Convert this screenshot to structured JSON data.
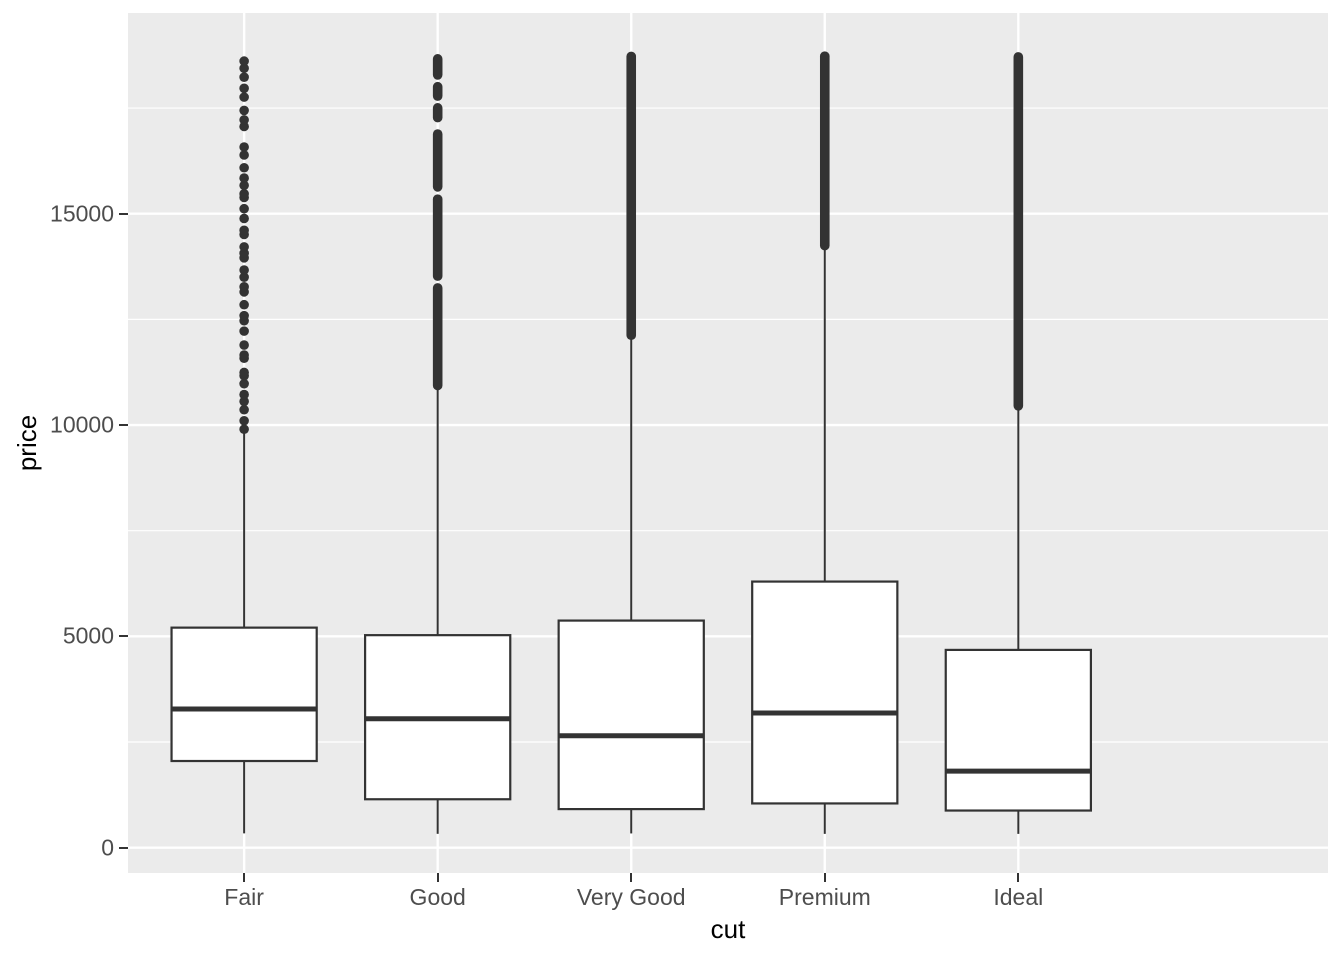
{
  "figure": {
    "y_axis_title": "price",
    "x_axis_title": "cut",
    "y_tick_labels": [
      "0",
      "5000",
      "10000",
      "15000"
    ],
    "x_tick_labels": [
      "Fair",
      "Good",
      "Very Good",
      "Premium",
      "Ideal"
    ],
    "colors": {
      "panel_background": "#EBEBEB",
      "gridline": "#FFFFFF",
      "box_stroke": "#333333",
      "box_fill": "#FFFFFF",
      "outlier": "#333333",
      "tick_label": "#4D4D4D",
      "axis_title": "#000000",
      "tick_mark": "#333333"
    }
  },
  "chart_data": {
    "type": "boxplot",
    "title": "",
    "xlabel": "cut",
    "ylabel": "price",
    "categories": [
      "Fair",
      "Good",
      "Very Good",
      "Premium",
      "Ideal"
    ],
    "ylim": [
      -600,
      19750
    ],
    "yticks": [
      0,
      5000,
      10000,
      15000
    ],
    "yticks_minor": [
      2500,
      7500,
      12500,
      17500
    ],
    "grid": "white major+minor horizontal lines and white vertical line at each category, on grey panel",
    "legend": "none",
    "series": [
      {
        "name": "Fair",
        "min": 337,
        "q1": 2050,
        "median": 3282,
        "q3": 5206,
        "whisker_high": 9890,
        "max": 18574,
        "outliers": {
          "style": "sparse-dots",
          "range": [
            9890,
            18640
          ],
          "bands": [
            [
              9890,
              11190
            ],
            [
              11230,
              11540
            ],
            [
              11660,
              12440
            ],
            [
              12610,
              13150
            ],
            [
              13250,
              13960
            ],
            [
              14030,
              14500
            ],
            [
              14660,
              15420
            ],
            [
              15440,
              16580
            ],
            [
              17030,
              17450
            ],
            [
              17810,
              18640
            ]
          ]
        }
      },
      {
        "name": "Good",
        "min": 327,
        "q1": 1145,
        "median": 3050,
        "q3": 5028,
        "whisker_high": 10840,
        "max": 18760,
        "outliers": {
          "style": "dense-column",
          "range": [
            10840,
            18760
          ],
          "gaps": [
            [
              13340,
              13430
            ],
            [
              15440,
              15540
            ],
            [
              16980,
              17180
            ],
            [
              17600,
              17690
            ],
            [
              18100,
              18190
            ]
          ]
        }
      },
      {
        "name": "Very Good",
        "min": 336,
        "q1": 912,
        "median": 2648,
        "q3": 5373,
        "whisker_high": 12030,
        "max": 18818,
        "outliers": {
          "style": "dense-column",
          "range": [
            12030,
            18818
          ],
          "gaps": []
        }
      },
      {
        "name": "Premium",
        "min": 326,
        "q1": 1046,
        "median": 3185,
        "q3": 6296,
        "whisker_high": 14150,
        "max": 18823,
        "outliers": {
          "style": "dense-column",
          "range": [
            14150,
            18823
          ],
          "gaps": []
        }
      },
      {
        "name": "Ideal",
        "min": 326,
        "q1": 878,
        "median": 1810,
        "q3": 4679,
        "whisker_high": 10360,
        "max": 18806,
        "outliers": {
          "style": "dense-column",
          "range": [
            10360,
            18806
          ],
          "gaps": []
        }
      }
    ]
  }
}
